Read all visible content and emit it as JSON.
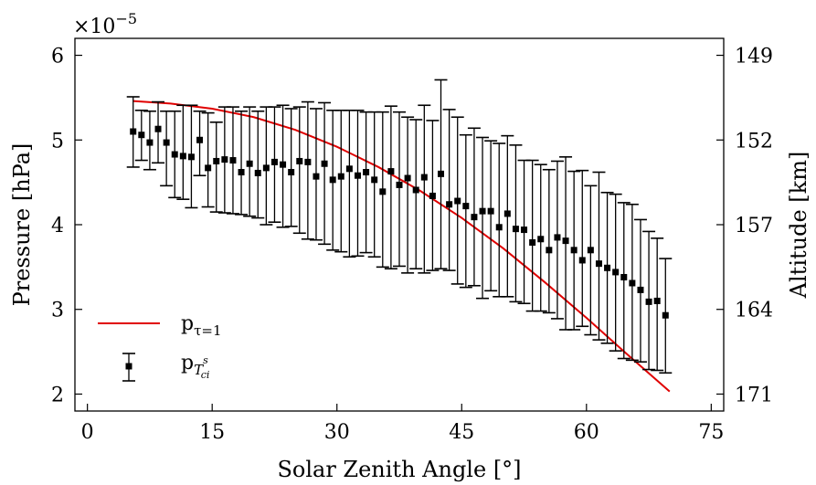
{
  "chart_data": {
    "type": "scatter",
    "xlabel": "Solar Zenith Angle [°]",
    "ylabel": "Pressure [hPa]",
    "y2label": "Altitude [km]",
    "y_multiplier_label": "×10",
    "y_multiplier_exponent": "−5",
    "xlim": [
      -1.5,
      76.5
    ],
    "ylim": [
      1.8,
      6.2
    ],
    "x_ticks": [
      0,
      15,
      30,
      45,
      60,
      75
    ],
    "y_ticks": [
      2,
      3,
      4,
      5,
      6
    ],
    "y2_ticks": [
      {
        "label": "149",
        "pressure": 6.0
      },
      {
        "label": "152",
        "pressure": 5.0
      },
      {
        "label": "157",
        "pressure": 4.0
      },
      {
        "label": "164",
        "pressure": 3.0
      },
      {
        "label": "171",
        "pressure": 2.0
      }
    ],
    "legend_position": "lower-left",
    "series": [
      {
        "name": "p",
        "name_sub": "τ=1",
        "kind": "line",
        "color": "#e00000",
        "x": [
          5.5,
          10,
          15,
          20,
          25,
          30,
          35,
          40,
          45,
          50,
          55,
          60,
          65,
          70
        ],
        "y": [
          5.46,
          5.43,
          5.37,
          5.27,
          5.12,
          4.92,
          4.68,
          4.4,
          4.08,
          3.72,
          3.32,
          2.9,
          2.46,
          2.03
        ]
      },
      {
        "name": "p",
        "name_sub": "T",
        "name_sub_sub": "ci",
        "name_sub_sup": "s",
        "kind": "errorbar",
        "color": "#000000",
        "x": [
          5.5,
          6.5,
          7.5,
          8.5,
          9.5,
          10.5,
          11.5,
          12.5,
          13.5,
          14.5,
          15.5,
          16.5,
          17.5,
          18.5,
          19.5,
          20.5,
          21.5,
          22.5,
          23.5,
          24.5,
          25.5,
          26.5,
          27.5,
          28.5,
          29.5,
          30.5,
          31.5,
          32.5,
          33.5,
          34.5,
          35.5,
          36.5,
          37.5,
          38.5,
          39.5,
          40.5,
          41.5,
          42.5,
          43.5,
          44.5,
          45.5,
          46.5,
          47.5,
          48.5,
          49.5,
          50.5,
          51.5,
          52.5,
          53.5,
          54.5,
          55.5,
          56.5,
          57.5,
          58.5,
          59.5,
          60.5,
          61.5,
          62.5,
          63.5,
          64.5,
          65.5,
          66.5,
          67.5,
          68.5,
          69.5
        ],
        "y": [
          5.1,
          5.06,
          4.97,
          5.13,
          4.97,
          4.83,
          4.81,
          4.8,
          5.0,
          4.67,
          4.75,
          4.77,
          4.76,
          4.62,
          4.72,
          4.61,
          4.67,
          4.74,
          4.71,
          4.62,
          4.75,
          4.74,
          4.57,
          4.72,
          4.53,
          4.57,
          4.66,
          4.58,
          4.62,
          4.53,
          4.39,
          4.63,
          4.47,
          4.55,
          4.41,
          4.56,
          4.34,
          4.6,
          4.24,
          4.28,
          4.22,
          4.09,
          4.16,
          4.16,
          3.97,
          4.13,
          3.95,
          3.94,
          3.79,
          3.83,
          3.7,
          3.85,
          3.81,
          3.7,
          3.58,
          3.7,
          3.54,
          3.49,
          3.44,
          3.38,
          3.31,
          3.23,
          3.09,
          3.1,
          2.93
        ],
        "y_upper": [
          5.51,
          5.35,
          5.34,
          5.45,
          5.34,
          5.34,
          5.41,
          5.41,
          5.34,
          5.32,
          5.21,
          5.39,
          5.39,
          5.34,
          5.39,
          5.34,
          5.39,
          5.39,
          5.41,
          5.37,
          5.39,
          5.45,
          5.37,
          5.44,
          5.35,
          5.35,
          5.35,
          5.35,
          5.33,
          5.33,
          5.33,
          5.4,
          5.33,
          5.27,
          5.24,
          5.41,
          5.23,
          5.71,
          5.36,
          5.27,
          5.06,
          5.14,
          5.03,
          4.99,
          4.96,
          5.05,
          4.94,
          4.76,
          4.76,
          4.71,
          4.65,
          4.75,
          4.8,
          4.63,
          4.64,
          4.46,
          4.62,
          4.38,
          4.36,
          4.26,
          4.24,
          4.06,
          3.92,
          3.84,
          3.6
        ],
        "y_lower": [
          4.68,
          4.76,
          4.65,
          4.73,
          4.46,
          4.32,
          4.3,
          4.2,
          4.58,
          4.21,
          4.15,
          4.14,
          4.13,
          4.12,
          4.1,
          4.08,
          4.0,
          4.03,
          3.97,
          3.98,
          3.9,
          3.83,
          3.82,
          3.77,
          3.7,
          3.68,
          3.62,
          3.63,
          3.67,
          3.62,
          3.5,
          3.48,
          3.51,
          3.43,
          3.48,
          3.43,
          3.46,
          3.48,
          3.46,
          3.3,
          3.26,
          3.28,
          3.13,
          3.22,
          3.15,
          3.15,
          3.09,
          3.07,
          2.98,
          2.98,
          2.96,
          2.89,
          2.76,
          2.76,
          2.8,
          2.7,
          2.64,
          2.6,
          2.51,
          2.42,
          2.4,
          2.38,
          2.29,
          2.28,
          2.25
        ]
      }
    ]
  }
}
